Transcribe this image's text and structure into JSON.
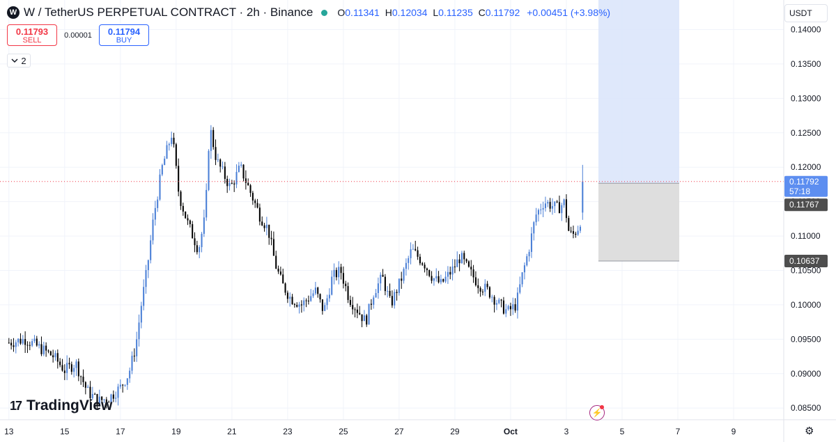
{
  "legend": {
    "logo_letter": "W",
    "symbol_title": "W / TetherUS PERPETUAL CONTRACT · 2h · Binance",
    "ohlc": [
      {
        "key": "O",
        "value": "0.11341"
      },
      {
        "key": "H",
        "value": "0.12034"
      },
      {
        "key": "L",
        "value": "0.11235"
      },
      {
        "key": "C",
        "value": "0.11792"
      }
    ],
    "change": "+0.00451 (+3.98%)"
  },
  "trade": {
    "sell_price": "0.11793",
    "sell_label": "SELL",
    "spread": "0.00001",
    "buy_price": "0.11794",
    "buy_label": "BUY"
  },
  "indicator_count": "2",
  "currency": "USDT",
  "brand": {
    "mark": "17",
    "word": "TradingView"
  },
  "colors": {
    "up_candle": "#4a7fd6",
    "down_candle": "#000000",
    "grid": "#f0f3fa",
    "price_line": "#f23645",
    "target_zone": "#dce6fb",
    "stop_zone": "#dcdcdc",
    "label_current": "#5d8ef0",
    "label_gray": "#4e4e4e"
  },
  "chart_data": {
    "type": "candlestick",
    "title": "W / TetherUS PERPETUAL CONTRACT · 2h · Binance",
    "y_ticks": [
      0.085,
      0.09,
      0.095,
      0.1,
      0.105,
      0.11,
      0.115,
      0.12,
      0.125,
      0.13,
      0.135,
      0.14
    ],
    "y_tick_labels": [
      "0.08500",
      "0.09000",
      "0.09500",
      "0.10000",
      "0.10500",
      "0.11000",
      "0.11500",
      "0.12000",
      "0.12500",
      "0.13000",
      "0.13500",
      "0.14000"
    ],
    "x_ticks": [
      {
        "label": "13",
        "day": 0
      },
      {
        "label": "15",
        "day": 2
      },
      {
        "label": "17",
        "day": 4
      },
      {
        "label": "19",
        "day": 6
      },
      {
        "label": "21",
        "day": 8
      },
      {
        "label": "23",
        "day": 10
      },
      {
        "label": "25",
        "day": 12
      },
      {
        "label": "27",
        "day": 14
      },
      {
        "label": "29",
        "day": 16
      },
      {
        "label": "Oct",
        "day": 18
      },
      {
        "label": "3",
        "day": 20
      },
      {
        "label": "5",
        "day": 22
      },
      {
        "label": "7",
        "day": 24
      },
      {
        "label": "9",
        "day": 26
      }
    ],
    "x_range_days": [
      -0.32,
      27.8
    ],
    "y_range": [
      0.0833,
      0.1443
    ],
    "anchors": [
      [
        0.0,
        0.0945
      ],
      [
        0.6,
        0.095
      ],
      [
        1.0,
        0.094
      ],
      [
        1.6,
        0.0925
      ],
      [
        2.0,
        0.0905
      ],
      [
        2.4,
        0.0915
      ],
      [
        2.8,
        0.0875
      ],
      [
        3.2,
        0.086
      ],
      [
        3.6,
        0.0865
      ],
      [
        4.0,
        0.088
      ],
      [
        4.3,
        0.09
      ],
      [
        4.55,
        0.094
      ],
      [
        4.75,
        0.1
      ],
      [
        4.95,
        0.105
      ],
      [
        5.2,
        0.113
      ],
      [
        5.5,
        0.12
      ],
      [
        5.85,
        0.125
      ],
      [
        6.1,
        0.116
      ],
      [
        6.4,
        0.112
      ],
      [
        6.8,
        0.108
      ],
      [
        7.05,
        0.113
      ],
      [
        7.2,
        0.126
      ],
      [
        7.45,
        0.121
      ],
      [
        7.7,
        0.119
      ],
      [
        7.95,
        0.117
      ],
      [
        8.3,
        0.12
      ],
      [
        8.7,
        0.116
      ],
      [
        9.0,
        0.113
      ],
      [
        9.3,
        0.111
      ],
      [
        9.55,
        0.106
      ],
      [
        9.8,
        0.103
      ],
      [
        10.1,
        0.101
      ],
      [
        10.5,
        0.1
      ],
      [
        11.0,
        0.102
      ],
      [
        11.3,
        0.099
      ],
      [
        11.6,
        0.104
      ],
      [
        11.9,
        0.105
      ],
      [
        12.2,
        0.101
      ],
      [
        12.55,
        0.099
      ],
      [
        12.8,
        0.0975
      ],
      [
        13.1,
        0.102
      ],
      [
        13.4,
        0.104
      ],
      [
        13.7,
        0.1
      ],
      [
        14.1,
        0.104
      ],
      [
        14.45,
        0.108
      ],
      [
        14.9,
        0.106
      ],
      [
        15.2,
        0.104
      ],
      [
        15.5,
        0.103
      ],
      [
        15.9,
        0.105
      ],
      [
        16.2,
        0.107
      ],
      [
        16.5,
        0.105
      ],
      [
        16.85,
        0.103
      ],
      [
        17.2,
        0.102
      ],
      [
        17.6,
        0.1
      ],
      [
        17.9,
        0.099
      ],
      [
        18.2,
        0.1
      ],
      [
        18.4,
        0.104
      ],
      [
        18.65,
        0.108
      ],
      [
        18.9,
        0.113
      ],
      [
        19.2,
        0.115
      ],
      [
        19.45,
        0.1145
      ],
      [
        19.7,
        0.114
      ],
      [
        19.95,
        0.115
      ],
      [
        20.05,
        0.111
      ],
      [
        20.2,
        0.11
      ],
      [
        20.4,
        0.111
      ],
      [
        20.6,
        0.1134
      ],
      [
        20.65,
        0.1179
      ]
    ],
    "last_price": "0.11792",
    "countdown": "57:18",
    "position": {
      "type": "long",
      "entry": 0.11767,
      "entry_label": "0.11767",
      "stop": 0.10637,
      "stop_label": "0.10637",
      "target_top": 0.1443,
      "start_day": 21.15,
      "end_day": 24.05
    }
  }
}
